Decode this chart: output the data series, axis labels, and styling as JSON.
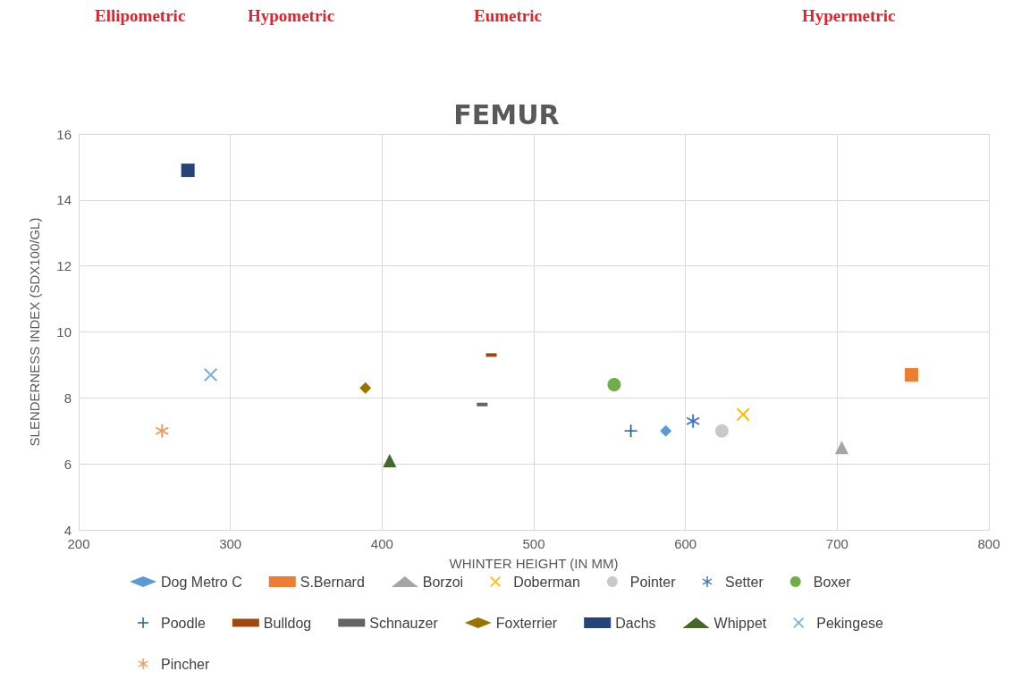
{
  "chart_data": {
    "type": "scatter",
    "title": "FEMUR",
    "xlabel": "WHINTER HEIGHT (IN MM)",
    "ylabel": "SLENDERNESS INDEX (SDX100/GL)",
    "annotations": [
      "Ellipometric",
      "Hypometric",
      "Eumetric",
      "Hypermetric"
    ],
    "xlim": [
      200,
      800
    ],
    "xticks": [
      200,
      300,
      400,
      500,
      600,
      700,
      800
    ],
    "ylim": [
      4,
      16
    ],
    "yticks": [
      4,
      6,
      8,
      10,
      12,
      14,
      16
    ],
    "grid": true,
    "legend": "bottom",
    "series": [
      {
        "name": "Dog Metro C",
        "color": "#5b9bd5",
        "marker": "diamond",
        "x": [
          587
        ],
        "values": [
          7.0
        ]
      },
      {
        "name": "S.Bernard",
        "color": "#ed7d31",
        "marker": "square",
        "x": [
          749
        ],
        "values": [
          8.7
        ]
      },
      {
        "name": "Borzoi",
        "color": "#a5a5a5",
        "marker": "triangle",
        "x": [
          703
        ],
        "values": [
          6.5
        ]
      },
      {
        "name": "Doberman",
        "color": "#ffc000",
        "marker": "cross",
        "x": [
          638
        ],
        "values": [
          7.5
        ]
      },
      {
        "name": "Pointer",
        "color": "#c9c9c9",
        "marker": "circle",
        "x": [
          624
        ],
        "values": [
          7.0
        ]
      },
      {
        "name": "Setter",
        "color": "#4472c4",
        "marker": "star",
        "x": [
          605
        ],
        "values": [
          7.3
        ]
      },
      {
        "name": "Boxer",
        "color": "#70ad47",
        "marker": "circle",
        "x": [
          553
        ],
        "values": [
          8.4
        ]
      },
      {
        "name": "Poodle",
        "color": "#255e91",
        "marker": "plus",
        "x": [
          564
        ],
        "values": [
          7.0
        ]
      },
      {
        "name": "Bulldog",
        "color": "#9e480e",
        "x": [
          472
        ],
        "values": [
          9.3
        ]
      },
      {
        "name": "Schnauzer",
        "color": "#636363",
        "x": [
          466
        ],
        "values": [
          7.8
        ]
      },
      {
        "name": "Foxterrier",
        "color": "#997300",
        "marker": "diamond",
        "x": [
          389
        ],
        "values": [
          8.3
        ]
      },
      {
        "name": "Dachs",
        "color": "#264478",
        "marker": "square",
        "x": [
          272
        ],
        "values": [
          14.9
        ]
      },
      {
        "name": "Whippet",
        "color": "#43682b",
        "marker": "triangle",
        "x": [
          405
        ],
        "values": [
          6.1
        ]
      },
      {
        "name": "Pekingese",
        "color": "#7cafdd",
        "marker": "cross",
        "x": [
          287
        ],
        "values": [
          8.7
        ]
      },
      {
        "name": "Pincher",
        "color": "#f1975a",
        "marker": "star",
        "x": [
          255
        ],
        "values": [
          7.0
        ]
      }
    ]
  }
}
